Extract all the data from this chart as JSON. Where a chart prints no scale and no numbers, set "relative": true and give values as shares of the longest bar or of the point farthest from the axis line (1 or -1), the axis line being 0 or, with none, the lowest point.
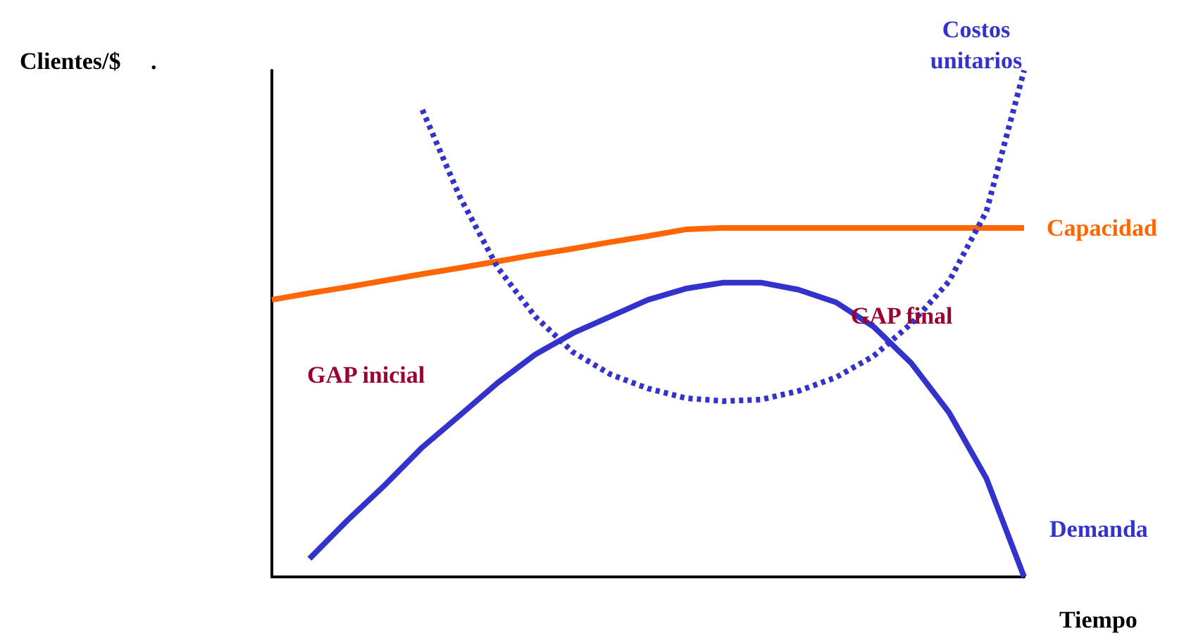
{
  "chart_data": {
    "type": "line",
    "relative": true,
    "xlabel": "Tiempo",
    "ylabel": "Clientes/$     .",
    "categories": [
      null,
      null,
      null,
      null,
      null,
      null,
      null,
      null,
      null,
      null,
      null,
      null,
      null,
      null,
      null,
      null,
      null,
      null,
      null,
      null,
      null
    ],
    "series": [
      {
        "name": "Capacidad",
        "color": "#ff6600",
        "line_style": "solid",
        "values": [
          0.547,
          0.56,
          0.572,
          0.585,
          0.598,
          0.61,
          0.623,
          0.636,
          0.648,
          0.661,
          0.673,
          0.686,
          0.689,
          0.689,
          0.689,
          0.689,
          0.689,
          0.689,
          0.689,
          0.689,
          0.689
        ]
      },
      {
        "name": "Demanda",
        "color": "#3333cc",
        "line_style": "solid",
        "values": [
          null,
          0.036,
          0.111,
          0.181,
          0.256,
          0.319,
          0.383,
          0.439,
          0.481,
          0.514,
          0.547,
          0.569,
          0.581,
          0.581,
          0.567,
          0.542,
          0.494,
          0.422,
          0.325,
          0.194,
          0
        ]
      },
      {
        "name": "Costos\nunitarios",
        "color": "#3333cc",
        "line_style": "dotted",
        "values": [
          null,
          null,
          null,
          null,
          0.922,
          0.75,
          0.611,
          0.514,
          0.444,
          0.4,
          0.372,
          0.353,
          0.347,
          0.35,
          0.367,
          0.394,
          0.436,
          0.5,
          0.583,
          0.722,
          1
        ]
      }
    ],
    "annotations": [
      "GAP inicial",
      "GAP final"
    ],
    "grid": false,
    "legend": false,
    "marker": "none"
  }
}
